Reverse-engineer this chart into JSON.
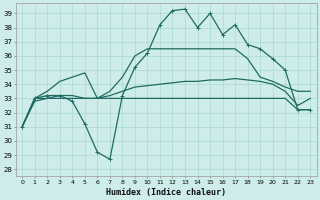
{
  "xlabel": "Humidex (Indice chaleur)",
  "ylabel": "",
  "bg_color": "#ceecea",
  "grid_color": "#a8d8d4",
  "line_color": "#1f6b62",
  "xlim": [
    -0.5,
    23.5
  ],
  "ylim": [
    27.5,
    39.7
  ],
  "yticks": [
    28,
    29,
    30,
    31,
    32,
    33,
    34,
    35,
    36,
    37,
    38,
    39
  ],
  "xticks": [
    0,
    1,
    2,
    3,
    4,
    5,
    6,
    7,
    8,
    9,
    10,
    11,
    12,
    13,
    14,
    15,
    16,
    17,
    18,
    19,
    20,
    21,
    22,
    23
  ],
  "series": [
    {
      "x": [
        0,
        1,
        2,
        3,
        4,
        5,
        6,
        7,
        8,
        9,
        10,
        11,
        12,
        13,
        14,
        15,
        16,
        17,
        18,
        19,
        20,
        21,
        22,
        23
      ],
      "y": [
        31.0,
        33.0,
        33.2,
        33.2,
        32.8,
        31.2,
        29.2,
        28.7,
        33.2,
        35.2,
        36.2,
        38.2,
        39.2,
        39.3,
        38.0,
        39.0,
        37.5,
        38.2,
        36.8,
        36.5,
        35.8,
        35.0,
        32.2,
        32.2
      ],
      "marker": "+",
      "lw": 0.9
    },
    {
      "x": [
        0,
        1,
        2,
        3,
        4,
        5,
        6,
        7,
        8,
        9,
        10,
        11,
        12,
        13,
        14,
        15,
        16,
        17,
        18,
        19,
        20,
        21,
        22,
        23
      ],
      "y": [
        31.0,
        32.8,
        33.0,
        33.0,
        33.0,
        33.0,
        33.0,
        33.0,
        33.0,
        33.0,
        33.0,
        33.0,
        33.0,
        33.0,
        33.0,
        33.0,
        33.0,
        33.0,
        33.0,
        33.0,
        33.0,
        33.0,
        32.2,
        32.2
      ],
      "marker": null,
      "lw": 0.9
    },
    {
      "x": [
        0,
        1,
        2,
        3,
        4,
        5,
        6,
        7,
        8,
        9,
        10,
        11,
        12,
        13,
        14,
        15,
        16,
        17,
        18,
        19,
        20,
        21,
        22,
        23
      ],
      "y": [
        31.0,
        33.0,
        33.0,
        33.2,
        33.2,
        33.0,
        33.0,
        33.2,
        33.5,
        33.8,
        33.9,
        34.0,
        34.1,
        34.2,
        34.2,
        34.3,
        34.3,
        34.4,
        34.3,
        34.2,
        34.0,
        33.5,
        32.5,
        33.0
      ],
      "marker": null,
      "lw": 0.9
    },
    {
      "x": [
        0,
        1,
        2,
        3,
        4,
        5,
        6,
        7,
        8,
        9,
        10,
        11,
        12,
        13,
        14,
        15,
        16,
        17,
        18,
        19,
        20,
        21,
        22,
        23
      ],
      "y": [
        31.0,
        33.0,
        33.5,
        34.2,
        34.5,
        34.8,
        33.0,
        33.5,
        34.5,
        36.0,
        36.5,
        36.5,
        36.5,
        36.5,
        36.5,
        36.5,
        36.5,
        36.5,
        35.8,
        34.5,
        34.2,
        33.8,
        33.5,
        33.5
      ],
      "marker": null,
      "lw": 0.9
    }
  ]
}
